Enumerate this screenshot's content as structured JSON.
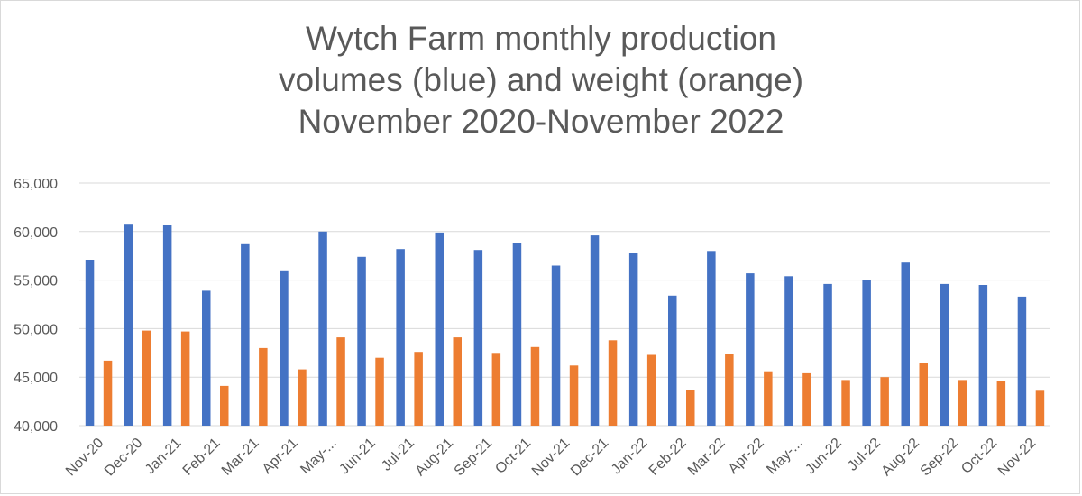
{
  "colors": {
    "volume": "#4472c4",
    "weight": "#ed7d31",
    "grid": "#d9d9d9",
    "text": "#595959"
  },
  "chart_data": {
    "type": "bar",
    "title_lines": [
      "Wytch Farm monthly production",
      "volumes (blue) and weight (orange)",
      "November 2020-November 2022"
    ],
    "categories": [
      "Nov-20",
      "Dec-20",
      "Jan-21",
      "Feb-21",
      "Mar-21",
      "Apr-21",
      "May-...",
      "Jun-21",
      "Jul-21",
      "Aug-21",
      "Sep-21",
      "Oct-21",
      "Nov-21",
      "Dec-21",
      "Jan-22",
      "Feb-22",
      "Mar-22",
      "Apr-22",
      "May-...",
      "Jun-22",
      "Jul-22",
      "Aug-22",
      "Sep-22",
      "Oct-22",
      "Nov-22"
    ],
    "series": [
      {
        "color": "#4472c4",
        "values": [
          57100,
          60800,
          60700,
          53900,
          58700,
          56000,
          60000,
          57400,
          58200,
          59900,
          58100,
          58800,
          56500,
          59600,
          57800,
          53400,
          58000,
          55700,
          55400,
          54600,
          55000,
          56800,
          54600,
          54500,
          53300
        ]
      },
      {
        "color": "#ed7d31",
        "values": [
          46700,
          49800,
          49700,
          44100,
          48000,
          45800,
          49100,
          47000,
          47600,
          49100,
          47500,
          48100,
          46200,
          48800,
          47300,
          43700,
          47400,
          45600,
          45400,
          44700,
          45000,
          46500,
          44700,
          44600,
          43600
        ]
      }
    ],
    "ylim": [
      40000,
      65000
    ],
    "yticks": [
      40000,
      45000,
      50000,
      55000,
      60000,
      65000
    ],
    "ytick_labels": [
      "40,000",
      "45,000",
      "50,000",
      "55,000",
      "60,000",
      "65,000"
    ],
    "grid": true,
    "legend": "none"
  }
}
